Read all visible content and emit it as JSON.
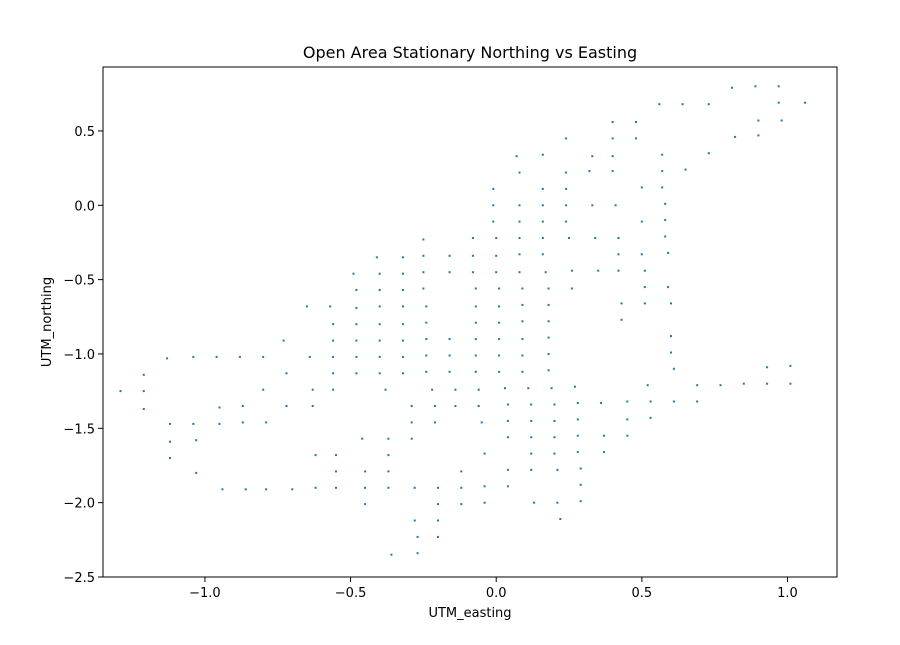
{
  "chart_data": {
    "type": "scatter",
    "title": "Open Area Stationary Northing vs Easting",
    "xlabel": "UTM_easting",
    "ylabel": "UTM_northing",
    "xlim": [
      -1.35,
      1.17
    ],
    "ylim": [
      -2.5,
      0.93
    ],
    "xticks": [
      -1.0,
      -0.5,
      0.0,
      0.5,
      1.0
    ],
    "xtick_labels": [
      "−1.0",
      "−0.5",
      "0.0",
      "0.5",
      "1.0"
    ],
    "yticks": [
      -2.5,
      -2.0,
      -1.5,
      -1.0,
      -0.5,
      0.0,
      0.5
    ],
    "ytick_labels": [
      "−2.5",
      "−2.0",
      "−1.5",
      "−1.0",
      "−0.5",
      "0.0",
      "0.5"
    ],
    "grid": false,
    "legend": false,
    "marker_color": "#1f77b4",
    "points": [
      [
        -1.29,
        -1.25
      ],
      [
        -1.21,
        -1.14
      ],
      [
        -1.21,
        -1.25
      ],
      [
        -1.21,
        -1.37
      ],
      [
        -1.13,
        -1.03
      ],
      [
        -1.12,
        -1.47
      ],
      [
        -1.12,
        -1.59
      ],
      [
        -1.12,
        -1.7
      ],
      [
        -1.04,
        -1.02
      ],
      [
        -1.04,
        -1.47
      ],
      [
        -1.03,
        -1.58
      ],
      [
        -1.03,
        -1.8
      ],
      [
        -0.96,
        -1.02
      ],
      [
        -0.95,
        -1.36
      ],
      [
        -0.95,
        -1.47
      ],
      [
        -0.94,
        -1.91
      ],
      [
        -0.88,
        -1.02
      ],
      [
        -0.87,
        -1.35
      ],
      [
        -0.87,
        -1.46
      ],
      [
        -0.86,
        -1.91
      ],
      [
        -0.8,
        -1.02
      ],
      [
        -0.8,
        -1.24
      ],
      [
        -0.79,
        -1.46
      ],
      [
        -0.79,
        -1.91
      ],
      [
        -0.73,
        -0.91
      ],
      [
        -0.72,
        -1.13
      ],
      [
        -0.72,
        -1.35
      ],
      [
        -0.7,
        -1.91
      ],
      [
        -0.65,
        -0.68
      ],
      [
        -0.64,
        -1.02
      ],
      [
        -0.63,
        -1.24
      ],
      [
        -0.63,
        -1.35
      ],
      [
        -0.62,
        -1.68
      ],
      [
        -0.62,
        -1.9
      ],
      [
        -0.57,
        -0.68
      ],
      [
        -0.56,
        -0.8
      ],
      [
        -0.56,
        -0.91
      ],
      [
        -0.56,
        -1.02
      ],
      [
        -0.56,
        -1.13
      ],
      [
        -0.56,
        -1.24
      ],
      [
        -0.55,
        -1.68
      ],
      [
        -0.55,
        -1.79
      ],
      [
        -0.55,
        -1.9
      ],
      [
        -0.49,
        -0.46
      ],
      [
        -0.48,
        -0.57
      ],
      [
        -0.48,
        -0.69
      ],
      [
        -0.48,
        -0.8
      ],
      [
        -0.48,
        -0.91
      ],
      [
        -0.48,
        -1.02
      ],
      [
        -0.48,
        -1.13
      ],
      [
        -0.46,
        -1.57
      ],
      [
        -0.45,
        -1.79
      ],
      [
        -0.45,
        -1.9
      ],
      [
        -0.45,
        -2.01
      ],
      [
        -0.41,
        -0.35
      ],
      [
        -0.4,
        -0.46
      ],
      [
        -0.4,
        -0.57
      ],
      [
        -0.4,
        -0.68
      ],
      [
        -0.4,
        -0.8
      ],
      [
        -0.4,
        -0.91
      ],
      [
        -0.4,
        -1.02
      ],
      [
        -0.4,
        -1.13
      ],
      [
        -0.38,
        -1.24
      ],
      [
        -0.37,
        -1.57
      ],
      [
        -0.37,
        -1.68
      ],
      [
        -0.37,
        -1.79
      ],
      [
        -0.37,
        -1.9
      ],
      [
        -0.36,
        -2.35
      ],
      [
        -0.32,
        -0.35
      ],
      [
        -0.32,
        -0.46
      ],
      [
        -0.32,
        -0.57
      ],
      [
        -0.32,
        -0.68
      ],
      [
        -0.32,
        -0.8
      ],
      [
        -0.32,
        -0.91
      ],
      [
        -0.32,
        -1.02
      ],
      [
        -0.32,
        -1.13
      ],
      [
        -0.29,
        -1.35
      ],
      [
        -0.29,
        -1.46
      ],
      [
        -0.29,
        -1.57
      ],
      [
        -0.28,
        -1.9
      ],
      [
        -0.28,
        -2.12
      ],
      [
        -0.27,
        -2.23
      ],
      [
        -0.27,
        -2.34
      ],
      [
        -0.25,
        -0.23
      ],
      [
        -0.25,
        -0.34
      ],
      [
        -0.25,
        -0.45
      ],
      [
        -0.25,
        -0.56
      ],
      [
        -0.24,
        -0.68
      ],
      [
        -0.24,
        -0.79
      ],
      [
        -0.24,
        -0.9
      ],
      [
        -0.24,
        -1.01
      ],
      [
        -0.24,
        -1.12
      ],
      [
        -0.22,
        -1.24
      ],
      [
        -0.21,
        -1.35
      ],
      [
        -0.21,
        -1.46
      ],
      [
        -0.2,
        -1.9
      ],
      [
        -0.2,
        -2.01
      ],
      [
        -0.2,
        -2.12
      ],
      [
        -0.2,
        -2.23
      ],
      [
        -0.16,
        -0.34
      ],
      [
        -0.16,
        -0.45
      ],
      [
        -0.16,
        -0.9
      ],
      [
        -0.16,
        -1.01
      ],
      [
        -0.16,
        -1.12
      ],
      [
        -0.14,
        -1.24
      ],
      [
        -0.14,
        -1.35
      ],
      [
        -0.12,
        -1.79
      ],
      [
        -0.12,
        -1.9
      ],
      [
        -0.12,
        -2.01
      ],
      [
        -0.08,
        -0.22
      ],
      [
        -0.08,
        -0.34
      ],
      [
        -0.08,
        -0.45
      ],
      [
        -0.07,
        -0.56
      ],
      [
        -0.07,
        -0.68
      ],
      [
        -0.07,
        -0.79
      ],
      [
        -0.07,
        -0.9
      ],
      [
        -0.07,
        -1.01
      ],
      [
        -0.07,
        -1.12
      ],
      [
        -0.06,
        -1.24
      ],
      [
        -0.06,
        -1.35
      ],
      [
        -0.05,
        -1.46
      ],
      [
        -0.04,
        -1.67
      ],
      [
        -0.04,
        -1.89
      ],
      [
        -0.04,
        -2.0
      ],
      [
        -0.01,
        0.11
      ],
      [
        -0.01,
        0.0
      ],
      [
        -0.01,
        -0.11
      ],
      [
        0.0,
        -0.22
      ],
      [
        0.0,
        -0.34
      ],
      [
        0.0,
        -0.45
      ],
      [
        0.01,
        -0.56
      ],
      [
        0.01,
        -0.68
      ],
      [
        0.01,
        -0.79
      ],
      [
        0.01,
        -0.9
      ],
      [
        0.01,
        -1.01
      ],
      [
        0.01,
        -1.12
      ],
      [
        0.03,
        -1.23
      ],
      [
        0.04,
        -1.34
      ],
      [
        0.04,
        -1.45
      ],
      [
        0.04,
        -1.56
      ],
      [
        0.04,
        -1.78
      ],
      [
        0.04,
        -1.89
      ],
      [
        0.07,
        0.33
      ],
      [
        0.08,
        0.22
      ],
      [
        0.08,
        0.0
      ],
      [
        0.08,
        -0.11
      ],
      [
        0.08,
        -0.22
      ],
      [
        0.08,
        -0.33
      ],
      [
        0.08,
        -0.45
      ],
      [
        0.09,
        -0.56
      ],
      [
        0.09,
        -0.67
      ],
      [
        0.09,
        -0.78
      ],
      [
        0.09,
        -0.9
      ],
      [
        0.09,
        -1.01
      ],
      [
        0.09,
        -1.12
      ],
      [
        0.11,
        -1.23
      ],
      [
        0.12,
        -1.34
      ],
      [
        0.12,
        -1.45
      ],
      [
        0.12,
        -1.56
      ],
      [
        0.12,
        -1.67
      ],
      [
        0.12,
        -1.78
      ],
      [
        0.13,
        -2.0
      ],
      [
        0.16,
        0.34
      ],
      [
        0.16,
        0.11
      ],
      [
        0.16,
        0.0
      ],
      [
        0.16,
        -0.11
      ],
      [
        0.16,
        -0.22
      ],
      [
        0.16,
        -0.33
      ],
      [
        0.17,
        -0.45
      ],
      [
        0.18,
        -0.56
      ],
      [
        0.18,
        -0.67
      ],
      [
        0.18,
        -0.78
      ],
      [
        0.18,
        -0.89
      ],
      [
        0.18,
        -1.0
      ],
      [
        0.18,
        -1.11
      ],
      [
        0.19,
        -1.23
      ],
      [
        0.2,
        -1.34
      ],
      [
        0.2,
        -1.45
      ],
      [
        0.2,
        -1.56
      ],
      [
        0.2,
        -1.67
      ],
      [
        0.21,
        -1.78
      ],
      [
        0.21,
        -2.0
      ],
      [
        0.22,
        -2.11
      ],
      [
        0.24,
        0.45
      ],
      [
        0.24,
        0.22
      ],
      [
        0.24,
        0.11
      ],
      [
        0.24,
        0.0
      ],
      [
        0.24,
        -0.11
      ],
      [
        0.25,
        -0.22
      ],
      [
        0.26,
        -0.44
      ],
      [
        0.26,
        -0.56
      ],
      [
        0.27,
        -1.22
      ],
      [
        0.28,
        -1.33
      ],
      [
        0.28,
        -1.44
      ],
      [
        0.28,
        -1.55
      ],
      [
        0.28,
        -1.66
      ],
      [
        0.29,
        -1.77
      ],
      [
        0.29,
        -1.88
      ],
      [
        0.29,
        -1.99
      ],
      [
        0.33,
        0.33
      ],
      [
        0.32,
        0.23
      ],
      [
        0.33,
        0.0
      ],
      [
        0.34,
        -0.22
      ],
      [
        0.35,
        -0.44
      ],
      [
        0.36,
        -1.33
      ],
      [
        0.37,
        -1.55
      ],
      [
        0.37,
        -1.66
      ],
      [
        0.4,
        0.56
      ],
      [
        0.4,
        0.45
      ],
      [
        0.4,
        0.33
      ],
      [
        0.4,
        0.23
      ],
      [
        0.41,
        0.0
      ],
      [
        0.42,
        -0.22
      ],
      [
        0.42,
        -0.33
      ],
      [
        0.42,
        -0.44
      ],
      [
        0.43,
        -0.66
      ],
      [
        0.43,
        -0.77
      ],
      [
        0.45,
        -1.32
      ],
      [
        0.45,
        -1.44
      ],
      [
        0.45,
        -1.55
      ],
      [
        0.48,
        0.56
      ],
      [
        0.48,
        0.45
      ],
      [
        0.5,
        0.12
      ],
      [
        0.5,
        -0.11
      ],
      [
        0.5,
        -0.33
      ],
      [
        0.51,
        -0.44
      ],
      [
        0.51,
        -0.55
      ],
      [
        0.51,
        -0.66
      ],
      [
        0.52,
        -1.21
      ],
      [
        0.53,
        -1.32
      ],
      [
        0.53,
        -1.43
      ],
      [
        0.56,
        0.68
      ],
      [
        0.57,
        0.34
      ],
      [
        0.57,
        0.23
      ],
      [
        0.57,
        0.12
      ],
      [
        0.58,
        0.01
      ],
      [
        0.58,
        -0.1
      ],
      [
        0.58,
        -0.21
      ],
      [
        0.59,
        -0.32
      ],
      [
        0.59,
        -0.55
      ],
      [
        0.6,
        -0.66
      ],
      [
        0.6,
        -0.88
      ],
      [
        0.6,
        -0.99
      ],
      [
        0.61,
        -1.1
      ],
      [
        0.61,
        -1.32
      ],
      [
        0.64,
        0.68
      ],
      [
        0.65,
        0.24
      ],
      [
        0.69,
        -1.21
      ],
      [
        0.69,
        -1.32
      ],
      [
        0.73,
        0.68
      ],
      [
        0.73,
        0.35
      ],
      [
        0.77,
        -1.21
      ],
      [
        0.81,
        0.79
      ],
      [
        0.82,
        0.46
      ],
      [
        0.85,
        -1.2
      ],
      [
        0.89,
        0.8
      ],
      [
        0.9,
        0.57
      ],
      [
        0.9,
        0.47
      ],
      [
        0.93,
        -1.09
      ],
      [
        0.93,
        -1.2
      ],
      [
        0.97,
        0.8
      ],
      [
        0.97,
        0.69
      ],
      [
        0.98,
        0.57
      ],
      [
        1.01,
        -1.08
      ],
      [
        1.01,
        -1.2
      ],
      [
        1.06,
        0.69
      ]
    ]
  }
}
